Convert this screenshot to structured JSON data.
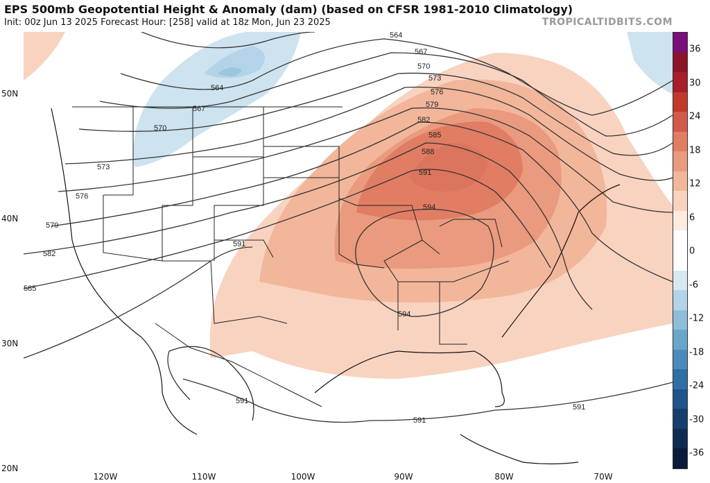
{
  "header": {
    "title": "EPS 500mb Geopotential Height & Anomaly (dam) (based on CFSR 1981-2010 Climatology)",
    "subtitle": "Init: 00z Jun 13 2025   Forecast Hour: [258]   valid at 18z Mon, Jun 23 2025",
    "site": "TROPICALTIDBITS.COM"
  },
  "axes": {
    "lat_labels": [
      "50N",
      "40N",
      "30N",
      "20N"
    ],
    "lon_labels": [
      "120W",
      "110W",
      "100W",
      "90W",
      "80W",
      "70W"
    ]
  },
  "contours": {
    "labels": [
      "564",
      "567",
      "570",
      "573",
      "576",
      "579",
      "582",
      "585",
      "588",
      "591",
      "594"
    ],
    "extra_labels": [
      "564",
      "567",
      "570",
      "573",
      "576",
      "579",
      "582",
      "585",
      "591",
      "594",
      "591",
      "591",
      "591"
    ]
  },
  "colorbar": {
    "ticks": [
      "36",
      "30",
      "24",
      "18",
      "12",
      "6",
      "0",
      "-6",
      "-12",
      "-18",
      "-24",
      "-30",
      "-36"
    ],
    "colors": [
      "#7a0e7a",
      "#8c1428",
      "#a81e2a",
      "#c0392b",
      "#d25a4a",
      "#e07d63",
      "#ea9a7e",
      "#f2b69a",
      "#f8d3c0",
      "#fdebe0",
      "#ffffff",
      "#ffffff",
      "#d6e8f2",
      "#b3d4e8",
      "#8fbedb",
      "#6aa6cc",
      "#4a8bbb",
      "#2e6fa5",
      "#1e558a",
      "#163f6d",
      "#0f2b52",
      "#0a1a3a"
    ]
  }
}
